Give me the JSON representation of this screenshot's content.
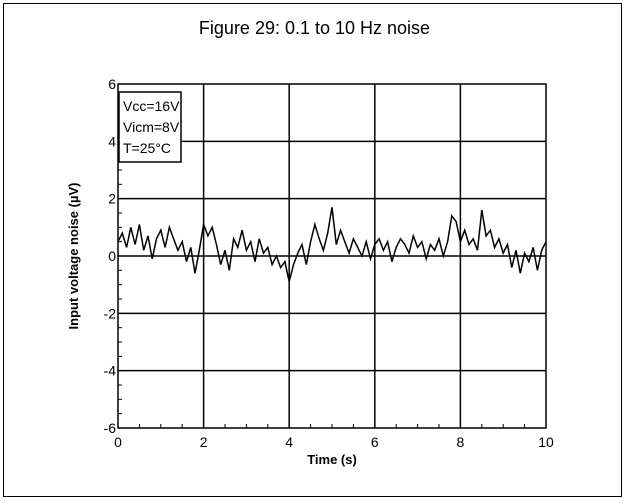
{
  "chart_data": {
    "type": "line",
    "title": "Figure 29: 0.1 to 10 Hz noise",
    "xlabel": "Time (s)",
    "ylabel": "Input voltage noise (µV)",
    "xlim": [
      0,
      10
    ],
    "ylim": [
      -6,
      6
    ],
    "x_ticks": [
      "0",
      "2",
      "4",
      "6",
      "8",
      "10"
    ],
    "y_ticks": [
      "6",
      "4",
      "2",
      "0",
      "-2",
      "-4",
      "-6"
    ],
    "grid": true,
    "annotation_lines": [
      "Vcc=16V",
      "Vicm=8V",
      "T=25°C"
    ],
    "series": [
      {
        "x": [
          0.0,
          0.1,
          0.2,
          0.3,
          0.4,
          0.5,
          0.6,
          0.7,
          0.8,
          0.9,
          1.0,
          1.1,
          1.2,
          1.3,
          1.4,
          1.5,
          1.6,
          1.7,
          1.8,
          1.9,
          2.0,
          2.1,
          2.2,
          2.3,
          2.4,
          2.5,
          2.6,
          2.7,
          2.8,
          2.9,
          3.0,
          3.1,
          3.2,
          3.3,
          3.4,
          3.5,
          3.6,
          3.7,
          3.8,
          3.9,
          4.0,
          4.1,
          4.2,
          4.3,
          4.4,
          4.5,
          4.6,
          4.7,
          4.8,
          4.9,
          5.0,
          5.1,
          5.2,
          5.3,
          5.4,
          5.5,
          5.6,
          5.7,
          5.8,
          5.9,
          6.0,
          6.1,
          6.2,
          6.3,
          6.4,
          6.5,
          6.6,
          6.7,
          6.8,
          6.9,
          7.0,
          7.1,
          7.2,
          7.3,
          7.4,
          7.5,
          7.6,
          7.7,
          7.8,
          7.9,
          8.0,
          8.1,
          8.2,
          8.3,
          8.4,
          8.5,
          8.6,
          8.7,
          8.8,
          8.9,
          9.0,
          9.1,
          9.2,
          9.3,
          9.4,
          9.5,
          9.6,
          9.7,
          9.8,
          9.9,
          10.0
        ],
        "values": [
          0.5,
          0.8,
          0.3,
          1.0,
          0.4,
          1.1,
          0.2,
          0.7,
          -0.1,
          0.6,
          0.9,
          0.3,
          1.0,
          0.6,
          0.2,
          0.5,
          -0.2,
          0.3,
          -0.6,
          0.2,
          1.1,
          0.7,
          1.0,
          0.4,
          -0.3,
          0.2,
          -0.5,
          0.6,
          0.3,
          0.9,
          0.2,
          0.5,
          -0.2,
          0.6,
          0.1,
          0.3,
          -0.3,
          0.0,
          -0.4,
          -0.2,
          -0.9,
          -0.3,
          0.1,
          0.4,
          -0.3,
          0.5,
          1.1,
          0.6,
          0.2,
          0.8,
          1.7,
          0.4,
          0.9,
          0.5,
          0.1,
          0.6,
          0.3,
          0.0,
          0.5,
          -0.1,
          0.4,
          0.6,
          0.2,
          0.5,
          -0.2,
          0.3,
          0.6,
          0.4,
          0.1,
          0.7,
          0.3,
          0.5,
          -0.1,
          0.4,
          0.2,
          0.6,
          0.0,
          0.5,
          1.4,
          1.2,
          0.5,
          0.9,
          0.4,
          0.6,
          0.2,
          1.6,
          0.7,
          0.9,
          0.3,
          0.6,
          0.1,
          0.4,
          -0.4,
          0.2,
          -0.6,
          0.1,
          -0.2,
          0.3,
          -0.5,
          0.2,
          0.5
        ]
      }
    ]
  }
}
